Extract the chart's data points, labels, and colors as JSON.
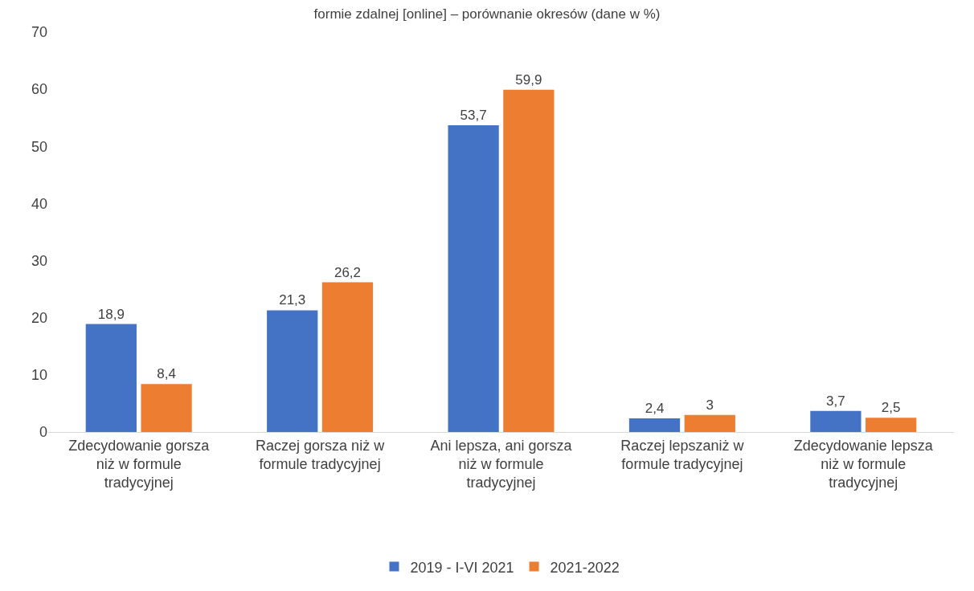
{
  "chart_data": {
    "type": "bar",
    "title": "formie zdalnej [online] – porównanie okresów (dane w %)",
    "categories": [
      "Zdecydowanie gorsza niż w formule tradycyjnej",
      "Raczej gorsza niż w formule tradycyjnej",
      "Ani lepsza, ani gorsza niż w formule tradycyjnej",
      "Raczej lepszaniż w formule tradycyjnej",
      "Zdecydowanie lepsza niż w formule tradycyjnej"
    ],
    "series": [
      {
        "name": "2019 - I-VI 2021",
        "color": "#4472c4",
        "values": [
          18.9,
          21.3,
          53.7,
          2.4,
          3.7
        ],
        "value_labels": [
          "18,9",
          "21,3",
          "53,7",
          "2,4",
          "3,7"
        ]
      },
      {
        "name": "2021-2022",
        "color": "#ed7d31",
        "values": [
          8.4,
          26.2,
          59.9,
          3,
          2.5
        ],
        "value_labels": [
          "8,4",
          "26,2",
          "59,9",
          "3",
          "2,5"
        ]
      }
    ],
    "ylim": [
      0,
      70
    ],
    "yticks": [
      0,
      10,
      20,
      30,
      40,
      50,
      60,
      70
    ],
    "grid": false,
    "legend": "bottom"
  }
}
